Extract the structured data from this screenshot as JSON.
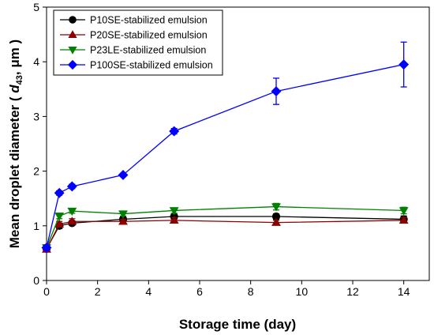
{
  "chart_data": {
    "type": "line",
    "xlabel": "Storage time (day)",
    "ylabel_prefix": "Mean droplet diameter ( ",
    "ylabel_var": "d",
    "ylabel_sub": "43",
    "ylabel_suffix": ", μm )",
    "xlim": [
      0,
      15
    ],
    "ylim": [
      0,
      5
    ],
    "xticks": [
      0,
      2,
      4,
      6,
      8,
      10,
      12,
      14
    ],
    "yticks": [
      0,
      1,
      2,
      3,
      4,
      5
    ],
    "legend_position": "top-left",
    "x": [
      0,
      0.5,
      1,
      3,
      5,
      9,
      14
    ],
    "series": [
      {
        "name": "P10SE-stabilized emulsion",
        "marker": "circle",
        "color": "#000000",
        "values": [
          0.58,
          1.0,
          1.05,
          1.12,
          1.17,
          1.17,
          1.12
        ],
        "errors": [
          0.05,
          0.05,
          0.04,
          0.04,
          0.05,
          0.05,
          0.06
        ]
      },
      {
        "name": "P20SE-stabilized emulsion",
        "marker": "triangle-up",
        "color": "#8b0000",
        "values": [
          0.57,
          1.03,
          1.08,
          1.08,
          1.1,
          1.06,
          1.1
        ],
        "errors": [
          0.04,
          0.05,
          0.05,
          0.04,
          0.05,
          0.04,
          0.05
        ]
      },
      {
        "name": "P23LE-stabilized emulsion",
        "marker": "triangle-down",
        "color": "#008000",
        "values": [
          0.6,
          1.18,
          1.27,
          1.22,
          1.28,
          1.35,
          1.28
        ],
        "errors": [
          0.05,
          0.05,
          0.04,
          0.04,
          0.05,
          0.06,
          0.06
        ]
      },
      {
        "name": "P100SE-stabilized emulsion",
        "marker": "diamond",
        "color": "#0000ff",
        "values": [
          0.6,
          1.6,
          1.72,
          1.93,
          2.73,
          3.46,
          3.95
        ],
        "errors": [
          0.05,
          0.04,
          0.04,
          0.03,
          0.05,
          0.24,
          0.41
        ]
      }
    ]
  }
}
